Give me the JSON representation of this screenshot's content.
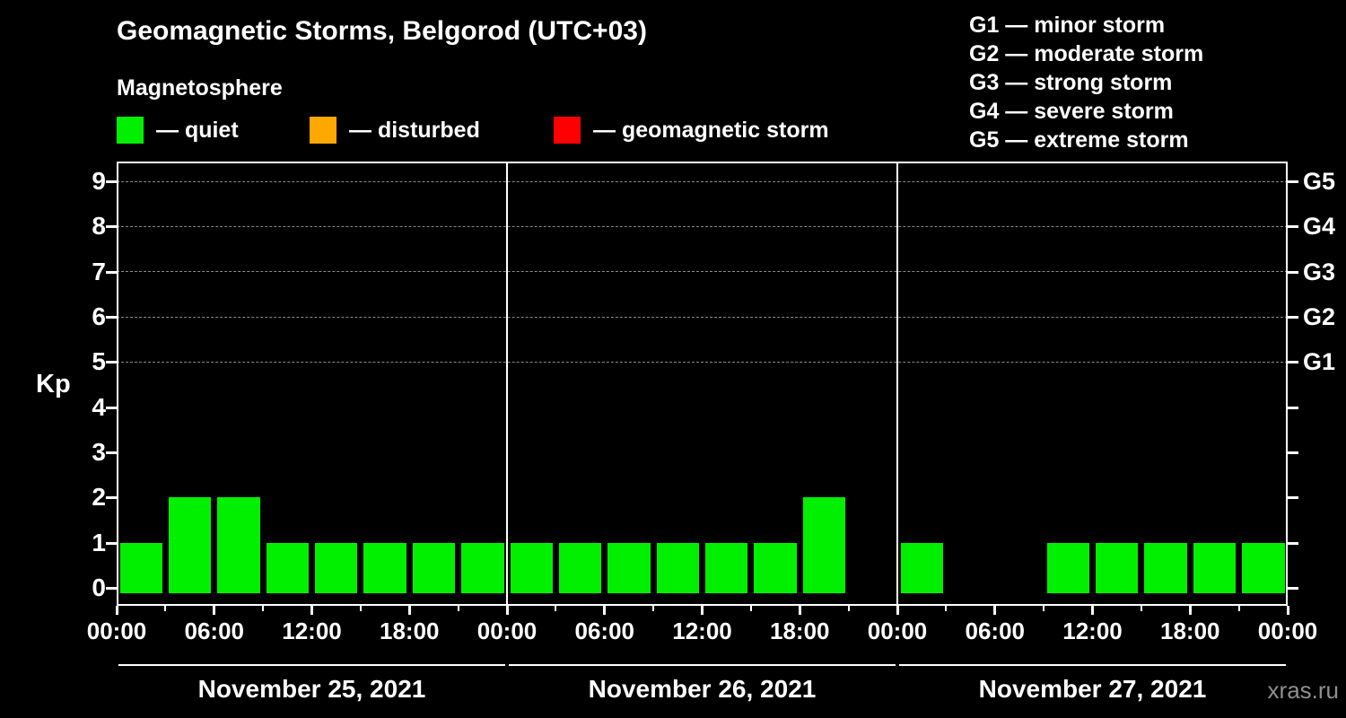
{
  "header": {
    "title": "Geomagnetic Storms, Belgorod (UTC+03)",
    "subtitle": "Magnetosphere"
  },
  "storm_scale_legend": [
    "G1 — minor storm",
    "G2 — moderate storm",
    "G3 — strong storm",
    "G4 — severe storm",
    "G5 — extreme storm"
  ],
  "activity_legend": [
    {
      "name": "quiet",
      "label": "— quiet",
      "color": "#00f000"
    },
    {
      "name": "disturbed",
      "label": "— disturbed",
      "color": "#ffa800"
    },
    {
      "name": "geomagnetic-storm",
      "label": "— geomagnetic storm",
      "color": "#ff0000"
    }
  ],
  "chart_data": {
    "type": "bar",
    "title": "Geomagnetic Storms, Belgorod (UTC+03)",
    "subtitle": "Magnetosphere",
    "ylabel": "Kp",
    "ylim": [
      0,
      9
    ],
    "ytick_labels": [
      "0",
      "1",
      "2",
      "3",
      "4",
      "5",
      "6",
      "7",
      "8",
      "9"
    ],
    "grid_levels": [
      5,
      6,
      7,
      8,
      9
    ],
    "right_axis": [
      {
        "label": "G1",
        "kp": 5
      },
      {
        "label": "G2",
        "kp": 6
      },
      {
        "label": "G3",
        "kp": 7
      },
      {
        "label": "G4",
        "kp": 8
      },
      {
        "label": "G5",
        "kp": 9
      }
    ],
    "bar_interval_hours": 3,
    "x_tick_labels": [
      "00:00",
      "06:00",
      "12:00",
      "18:00",
      "00:00",
      "06:00",
      "12:00",
      "18:00",
      "00:00",
      "06:00",
      "12:00",
      "18:00",
      "00:00"
    ],
    "days": [
      {
        "date": "November 25, 2021",
        "kp_values": [
          1,
          2,
          2,
          1,
          1,
          1,
          1,
          1
        ]
      },
      {
        "date": "November 26, 2021",
        "kp_values": [
          1,
          1,
          1,
          1,
          1,
          1,
          2,
          0
        ]
      },
      {
        "date": "November 27, 2021",
        "kp_values": [
          1,
          0,
          0,
          1,
          1,
          1,
          1,
          1
        ]
      }
    ],
    "bar_color": "#00f000",
    "legend_position": "top",
    "grid": "dashed horizontal at G levels only"
  },
  "footer": {
    "watermark": "xras.ru"
  }
}
